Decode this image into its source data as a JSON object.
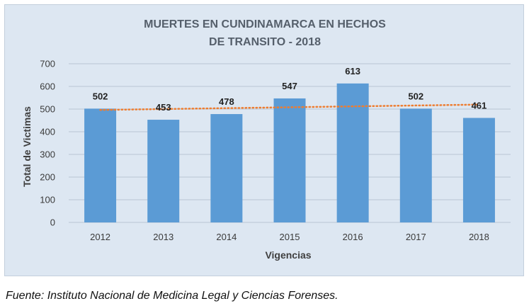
{
  "chart_data": {
    "type": "bar",
    "title": [
      "MUERTES EN CUNDINAMARCA EN HECHOS",
      "DE TRANSITO - 2018"
    ],
    "xlabel": "Vigencias",
    "ylabel": "Total de Victimas",
    "categories": [
      "2012",
      "2013",
      "2014",
      "2015",
      "2016",
      "2017",
      "2018"
    ],
    "values": [
      502,
      453,
      478,
      547,
      613,
      502,
      461
    ],
    "ylim": [
      0,
      700
    ],
    "yticks": [
      0,
      100,
      200,
      300,
      400,
      500,
      600,
      700
    ],
    "grid": true,
    "trendline": {
      "style": "dotted",
      "kind": "linear"
    },
    "colors": {
      "bar": "#5b9bd5",
      "trendline": "#ed7d31",
      "grid": "#b9c6d4",
      "background": "#dde7f2"
    }
  },
  "source_note": "Fuente: Instituto Nacional de Medicina Legal y Ciencias Forenses."
}
